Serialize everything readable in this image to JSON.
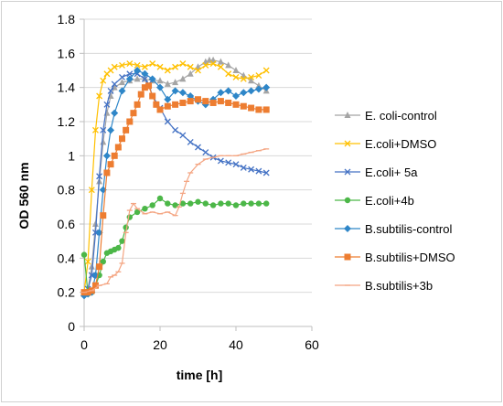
{
  "chart_data": {
    "type": "line",
    "xlabel": "time [h]",
    "ylabel": "OD 560 nm",
    "xlim": [
      0,
      60
    ],
    "ylim": [
      0,
      1.8
    ],
    "xticks": [
      0,
      20,
      40,
      60
    ],
    "yticks": [
      0,
      0.2,
      0.4,
      0.6,
      0.8,
      1,
      1.2,
      1.4,
      1.6,
      1.8
    ],
    "xtick_labels": [
      "0",
      "20",
      "40",
      "60"
    ],
    "ytick_labels": [
      "0",
      "0.2",
      "0.4",
      "0.6",
      "0.8",
      "1",
      "1.2",
      "1.4",
      "1.6",
      "1.8"
    ],
    "grid": "horizontal",
    "legend_position": "right",
    "series": [
      {
        "name": "E. coli-control",
        "color": "#a5a5a5",
        "marker": "triangle",
        "x": [
          0,
          1,
          2,
          3,
          4,
          5,
          6,
          7,
          8,
          10,
          12,
          14,
          16,
          18,
          20,
          22,
          24,
          26,
          28,
          30,
          32,
          33,
          34,
          36,
          38,
          40,
          42,
          44,
          46,
          48
        ],
        "y": [
          0.19,
          0.22,
          0.35,
          0.6,
          0.85,
          1.08,
          1.25,
          1.35,
          1.4,
          1.43,
          1.44,
          1.45,
          1.45,
          1.44,
          1.44,
          1.42,
          1.43,
          1.45,
          1.48,
          1.52,
          1.55,
          1.56,
          1.56,
          1.55,
          1.53,
          1.5,
          1.47,
          1.44,
          1.41,
          1.38
        ]
      },
      {
        "name": "E.coli+DMSO",
        "color": "#ffc000",
        "marker": "x",
        "x": [
          0,
          1,
          2,
          3,
          4,
          5,
          6,
          7,
          8,
          10,
          12,
          14,
          16,
          18,
          20,
          22,
          24,
          26,
          28,
          30,
          32,
          34,
          36,
          38,
          40,
          42,
          44,
          46,
          48
        ],
        "y": [
          0.2,
          0.38,
          0.8,
          1.15,
          1.35,
          1.44,
          1.48,
          1.5,
          1.52,
          1.53,
          1.54,
          1.53,
          1.52,
          1.54,
          1.52,
          1.5,
          1.52,
          1.54,
          1.52,
          1.5,
          1.53,
          1.54,
          1.52,
          1.48,
          1.46,
          1.45,
          1.46,
          1.47,
          1.5
        ]
      },
      {
        "name": "E.coli+ 5a",
        "color": "#4472c4",
        "marker": "x",
        "x": [
          0,
          1,
          2,
          3,
          4,
          5,
          6,
          7,
          8,
          10,
          12,
          14,
          16,
          17,
          18,
          20,
          22,
          24,
          26,
          28,
          30,
          32,
          34,
          36,
          38,
          40,
          42,
          44,
          46,
          48
        ],
        "y": [
          0.2,
          0.22,
          0.3,
          0.55,
          0.88,
          1.15,
          1.3,
          1.38,
          1.42,
          1.46,
          1.48,
          1.48,
          1.45,
          1.42,
          1.35,
          1.28,
          1.2,
          1.15,
          1.12,
          1.08,
          1.05,
          1.02,
          0.99,
          0.97,
          0.96,
          0.95,
          0.93,
          0.92,
          0.91,
          0.9
        ]
      },
      {
        "name": "E.coli+4b",
        "color": "#4cb748",
        "marker": "circle",
        "x": [
          0,
          1,
          2,
          3,
          4,
          5,
          6,
          7,
          8,
          9,
          10,
          11,
          12,
          14,
          16,
          18,
          20,
          22,
          24,
          26,
          28,
          30,
          32,
          34,
          36,
          38,
          40,
          42,
          44,
          46,
          48
        ],
        "y": [
          0.42,
          0.19,
          0.2,
          0.24,
          0.3,
          0.38,
          0.43,
          0.44,
          0.45,
          0.46,
          0.5,
          0.58,
          0.64,
          0.67,
          0.69,
          0.71,
          0.75,
          0.72,
          0.71,
          0.72,
          0.72,
          0.73,
          0.72,
          0.71,
          0.72,
          0.72,
          0.71,
          0.72,
          0.72,
          0.72,
          0.72
        ]
      },
      {
        "name": "B.subtilis-control",
        "color": "#2e86c8",
        "marker": "diamond",
        "x": [
          0,
          1,
          2,
          3,
          4,
          5,
          6,
          7,
          8,
          10,
          12,
          14,
          16,
          18,
          20,
          22,
          24,
          26,
          28,
          30,
          32,
          34,
          36,
          38,
          40,
          42,
          44,
          46,
          48
        ],
        "y": [
          0.18,
          0.19,
          0.2,
          0.3,
          0.55,
          0.8,
          1.0,
          1.15,
          1.25,
          1.38,
          1.45,
          1.5,
          1.48,
          1.45,
          1.4,
          1.33,
          1.38,
          1.37,
          1.35,
          1.32,
          1.3,
          1.33,
          1.37,
          1.38,
          1.35,
          1.37,
          1.38,
          1.39,
          1.4
        ]
      },
      {
        "name": "B.subtilis+DMSO",
        "color": "#ed7d31",
        "marker": "square",
        "x": [
          0,
          1,
          2,
          3,
          4,
          5,
          6,
          7,
          8,
          9,
          10,
          11,
          12,
          13,
          14,
          15,
          16,
          17,
          18,
          19,
          20,
          22,
          24,
          26,
          28,
          30,
          32,
          34,
          36,
          38,
          40,
          42,
          44,
          46,
          48
        ],
        "y": [
          0.2,
          0.2,
          0.21,
          0.24,
          0.35,
          0.65,
          0.9,
          0.95,
          1.0,
          1.05,
          1.1,
          1.15,
          1.2,
          1.25,
          1.3,
          1.36,
          1.4,
          1.41,
          1.35,
          1.3,
          1.27,
          1.29,
          1.3,
          1.31,
          1.32,
          1.33,
          1.32,
          1.31,
          1.32,
          1.31,
          1.3,
          1.29,
          1.28,
          1.27,
          1.27
        ]
      },
      {
        "name": "B.subtilis+3b",
        "color": "#f4a582",
        "marker": "dash",
        "x": [
          0,
          2,
          4,
          6,
          7,
          8,
          9,
          10,
          11,
          12,
          13,
          14,
          16,
          18,
          20,
          22,
          24,
          25,
          26,
          27,
          28,
          30,
          32,
          34,
          36,
          38,
          40,
          42,
          44,
          46,
          48
        ],
        "y": [
          0.2,
          0.21,
          0.24,
          0.25,
          0.29,
          0.3,
          0.32,
          0.37,
          0.55,
          0.68,
          0.72,
          0.69,
          0.66,
          0.67,
          0.66,
          0.67,
          0.65,
          0.7,
          0.78,
          0.85,
          0.9,
          0.95,
          0.98,
          0.99,
          1.0,
          1.0,
          1.0,
          1.01,
          1.02,
          1.03,
          1.04
        ]
      }
    ]
  }
}
